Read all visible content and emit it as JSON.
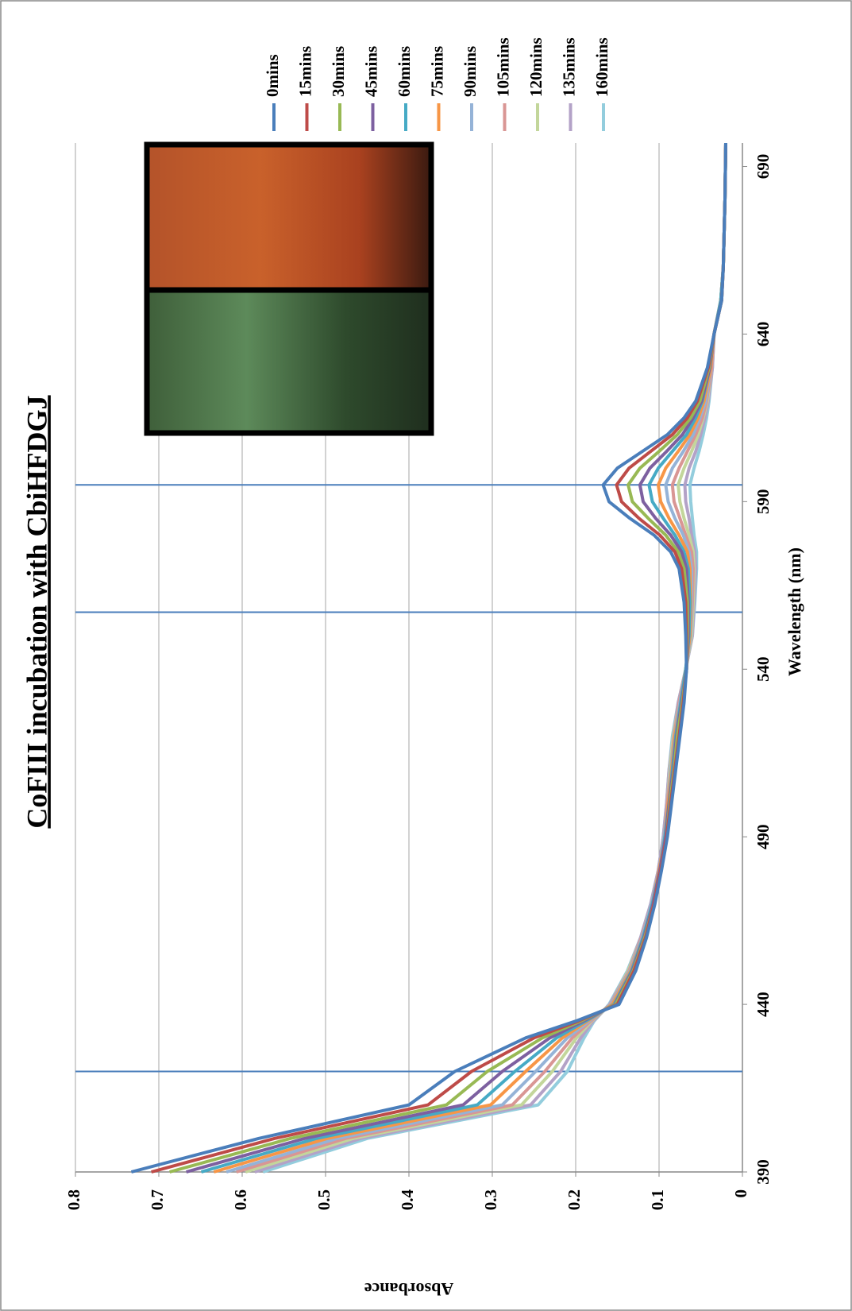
{
  "chart_data": {
    "type": "line",
    "title": "CoFIII incubation with CbiHFDGJ",
    "x_label": "Wavelength (nm)",
    "y_label": "Absorbance",
    "x": [
      390,
      400,
      410,
      420,
      430,
      435,
      440,
      450,
      460,
      470,
      480,
      490,
      500,
      510,
      520,
      530,
      540,
      550,
      560,
      570,
      575,
      580,
      585,
      590,
      595,
      600,
      605,
      610,
      615,
      620,
      630,
      640,
      650,
      660,
      680,
      697
    ],
    "xlim": [
      390,
      697
    ],
    "xticks": [
      390,
      440,
      490,
      540,
      590,
      640,
      690
    ],
    "ylim": [
      0,
      0.8
    ],
    "yticks": [
      0,
      0.1,
      0.2,
      0.3,
      0.4,
      0.5,
      0.6,
      0.7,
      0.8
    ],
    "grid": true,
    "annotation_lines": [
      420,
      557,
      595
    ],
    "annotation_color": "#4a7ebb",
    "series": [
      {
        "name": "0mins",
        "color": "#4a7ebb",
        "values": [
          0.733,
          0.58,
          0.4,
          0.345,
          0.26,
          0.2,
          0.148,
          0.128,
          0.115,
          0.105,
          0.097,
          0.09,
          0.085,
          0.08,
          0.075,
          0.07,
          0.067,
          0.068,
          0.07,
          0.076,
          0.086,
          0.106,
          0.135,
          0.16,
          0.167,
          0.15,
          0.12,
          0.09,
          0.07,
          0.056,
          0.042,
          0.034,
          0.025,
          0.023,
          0.021,
          0.02
        ]
      },
      {
        "name": "15mins",
        "color": "#be4b48",
        "values": [
          0.709,
          0.561,
          0.377,
          0.325,
          0.25,
          0.197,
          0.15,
          0.13,
          0.116,
          0.106,
          0.098,
          0.091,
          0.086,
          0.081,
          0.076,
          0.071,
          0.067,
          0.067,
          0.068,
          0.073,
          0.081,
          0.099,
          0.124,
          0.145,
          0.151,
          0.136,
          0.11,
          0.084,
          0.066,
          0.054,
          0.041,
          0.034,
          0.025,
          0.023,
          0.021,
          0.02
        ]
      },
      {
        "name": "30mins",
        "color": "#98b954",
        "values": [
          0.687,
          0.542,
          0.355,
          0.306,
          0.24,
          0.194,
          0.152,
          0.131,
          0.117,
          0.106,
          0.098,
          0.091,
          0.087,
          0.082,
          0.078,
          0.072,
          0.067,
          0.066,
          0.066,
          0.07,
          0.077,
          0.092,
          0.113,
          0.132,
          0.137,
          0.123,
          0.1,
          0.078,
          0.062,
          0.051,
          0.04,
          0.034,
          0.025,
          0.023,
          0.021,
          0.02
        ]
      },
      {
        "name": "45mins",
        "color": "#7d60a0",
        "values": [
          0.667,
          0.525,
          0.335,
          0.288,
          0.231,
          0.191,
          0.153,
          0.132,
          0.118,
          0.107,
          0.099,
          0.092,
          0.088,
          0.083,
          0.079,
          0.073,
          0.067,
          0.065,
          0.065,
          0.067,
          0.073,
          0.086,
          0.104,
          0.119,
          0.123,
          0.111,
          0.091,
          0.072,
          0.059,
          0.049,
          0.039,
          0.034,
          0.025,
          0.023,
          0.021,
          0.02
        ]
      },
      {
        "name": "60mins",
        "color": "#46aac5",
        "values": [
          0.649,
          0.511,
          0.318,
          0.273,
          0.223,
          0.188,
          0.154,
          0.133,
          0.119,
          0.108,
          0.099,
          0.093,
          0.088,
          0.084,
          0.08,
          0.074,
          0.068,
          0.064,
          0.063,
          0.065,
          0.07,
          0.081,
          0.095,
          0.108,
          0.112,
          0.101,
          0.084,
          0.067,
          0.056,
          0.048,
          0.039,
          0.034,
          0.026,
          0.023,
          0.021,
          0.02
        ]
      },
      {
        "name": "75mins",
        "color": "#f79646",
        "values": [
          0.634,
          0.498,
          0.302,
          0.26,
          0.216,
          0.186,
          0.156,
          0.134,
          0.119,
          0.108,
          0.1,
          0.093,
          0.089,
          0.085,
          0.081,
          0.074,
          0.068,
          0.063,
          0.062,
          0.063,
          0.066,
          0.076,
          0.088,
          0.098,
          0.101,
          0.092,
          0.077,
          0.063,
          0.053,
          0.046,
          0.038,
          0.034,
          0.026,
          0.023,
          0.021,
          0.02
        ]
      },
      {
        "name": "90mins",
        "color": "#95b3d7",
        "values": [
          0.619,
          0.486,
          0.288,
          0.248,
          0.21,
          0.184,
          0.157,
          0.135,
          0.12,
          0.109,
          0.1,
          0.094,
          0.089,
          0.086,
          0.081,
          0.075,
          0.068,
          0.062,
          0.061,
          0.061,
          0.064,
          0.071,
          0.081,
          0.089,
          0.092,
          0.084,
          0.071,
          0.059,
          0.051,
          0.044,
          0.038,
          0.034,
          0.026,
          0.023,
          0.021,
          0.02
        ]
      },
      {
        "name": "105mins",
        "color": "#d99694",
        "values": [
          0.607,
          0.476,
          0.276,
          0.237,
          0.204,
          0.182,
          0.158,
          0.136,
          0.121,
          0.109,
          0.1,
          0.094,
          0.09,
          0.086,
          0.082,
          0.076,
          0.068,
          0.062,
          0.06,
          0.059,
          0.061,
          0.068,
          0.075,
          0.082,
          0.084,
          0.076,
          0.066,
          0.056,
          0.048,
          0.043,
          0.037,
          0.034,
          0.026,
          0.023,
          0.021,
          0.02
        ]
      },
      {
        "name": "120mins",
        "color": "#c3d69b",
        "values": [
          0.596,
          0.467,
          0.265,
          0.228,
          0.199,
          0.181,
          0.158,
          0.137,
          0.121,
          0.109,
          0.1,
          0.094,
          0.09,
          0.087,
          0.083,
          0.076,
          0.068,
          0.061,
          0.059,
          0.058,
          0.059,
          0.064,
          0.07,
          0.075,
          0.077,
          0.07,
          0.061,
          0.053,
          0.047,
          0.042,
          0.037,
          0.034,
          0.026,
          0.023,
          0.021,
          0.02
        ]
      },
      {
        "name": "135mins",
        "color": "#b3a2c7",
        "values": [
          0.585,
          0.458,
          0.254,
          0.218,
          0.194,
          0.179,
          0.159,
          0.137,
          0.122,
          0.11,
          0.101,
          0.095,
          0.091,
          0.088,
          0.083,
          0.077,
          0.068,
          0.06,
          0.058,
          0.056,
          0.057,
          0.061,
          0.064,
          0.068,
          0.069,
          0.064,
          0.056,
          0.05,
          0.045,
          0.041,
          0.036,
          0.034,
          0.026,
          0.023,
          0.021,
          0.02
        ]
      },
      {
        "name": "160mins",
        "color": "#93cddd",
        "values": [
          0.575,
          0.45,
          0.245,
          0.21,
          0.19,
          0.178,
          0.16,
          0.138,
          0.122,
          0.11,
          0.101,
          0.095,
          0.091,
          0.088,
          0.084,
          0.077,
          0.068,
          0.06,
          0.057,
          0.055,
          0.055,
          0.058,
          0.06,
          0.062,
          0.063,
          0.058,
          0.052,
          0.047,
          0.043,
          0.04,
          0.036,
          0.034,
          0.026,
          0.023,
          0.021,
          0.02
        ]
      }
    ]
  }
}
